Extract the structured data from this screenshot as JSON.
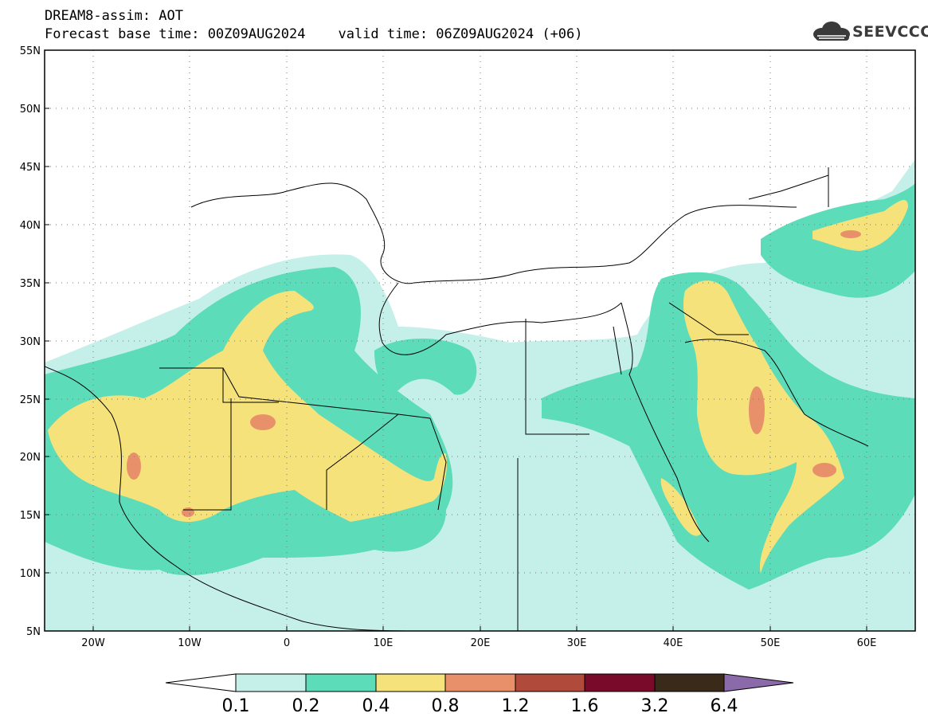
{
  "header": {
    "title": "DREAM8-assim: AOT",
    "base_time_label": "Forecast base time: 00Z09AUG2024",
    "valid_time_label": "valid time: 06Z09AUG2024 (+06)"
  },
  "logo": {
    "text": "SEEVCCC",
    "icon": "cloud-icon"
  },
  "map": {
    "lat_labels": [
      "55N",
      "50N",
      "45N",
      "40N",
      "35N",
      "30N",
      "25N",
      "20N",
      "15N",
      "10N",
      "5N"
    ],
    "lon_labels": [
      "20W",
      "10W",
      "0",
      "10E",
      "20E",
      "30E",
      "40E",
      "50E",
      "60E"
    ],
    "lat_range": [
      5,
      55
    ],
    "lon_range": [
      -25,
      65
    ],
    "grid": "dotted"
  },
  "colorbar": {
    "labels": [
      "0.1",
      "0.2",
      "0.4",
      "0.8",
      "1.2",
      "1.6",
      "3.2",
      "6.4"
    ],
    "colors": [
      "#ffffff",
      "#c5f0ea",
      "#5cdcb8",
      "#f6e27a",
      "#e8906a",
      "#b04a3a",
      "#7a0a2a",
      "#3a2a1a",
      "#8a6aa8"
    ]
  }
}
